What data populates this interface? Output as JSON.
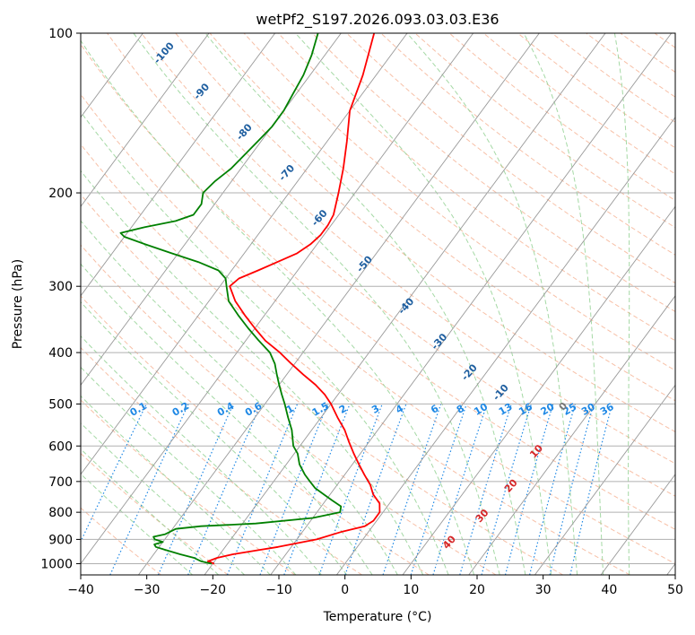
{
  "chart_data": {
    "type": "line",
    "title": "wetPf2_S197.2026.093.03.03.E36",
    "xlabel": "Temperature (°C)",
    "ylabel": "Pressure (hPa)",
    "xlim": [
      -40,
      50
    ],
    "ylim": [
      1050,
      100
    ],
    "y_scale": "log",
    "x_ticks": [
      -40,
      -30,
      -20,
      -10,
      0,
      10,
      20,
      30,
      40,
      50
    ],
    "y_ticks": [
      100,
      200,
      300,
      400,
      500,
      600,
      700,
      800,
      900,
      1000
    ],
    "skew": "skew-T",
    "grid": true,
    "colors": {
      "temperature": "#ff0000",
      "dewpoint": "#008000",
      "isotherm": "#999999",
      "dry_adiabat": "#f4a582",
      "moist_adiabat": "#8fcf8f",
      "mixing_ratio": "#1e88e5",
      "axis": "#000000"
    },
    "series": [
      {
        "name": "Temperature",
        "color": "#ff0000",
        "points": [
          [
            -19.8,
            1000
          ],
          [
            -21,
            990
          ],
          [
            -20,
            975
          ],
          [
            -18,
            960
          ],
          [
            -15,
            945
          ],
          [
            -12,
            930
          ],
          [
            -7,
            900
          ],
          [
            -4,
            870
          ],
          [
            -1.2,
            850
          ],
          [
            -0.5,
            830
          ],
          [
            -0.5,
            800
          ],
          [
            -1.5,
            770
          ],
          [
            -3.5,
            740
          ],
          [
            -5,
            710
          ],
          [
            -7,
            680
          ],
          [
            -9,
            650
          ],
          [
            -11,
            620
          ],
          [
            -13,
            590
          ],
          [
            -15,
            560
          ],
          [
            -17.5,
            530
          ],
          [
            -20,
            500
          ],
          [
            -22,
            480
          ],
          [
            -24.5,
            460
          ],
          [
            -27.5,
            440
          ],
          [
            -30.5,
            420
          ],
          [
            -33.5,
            400
          ],
          [
            -37,
            380
          ],
          [
            -40,
            360
          ],
          [
            -43,
            340
          ],
          [
            -46,
            320
          ],
          [
            -48.5,
            300
          ],
          [
            -48,
            290
          ],
          [
            -46,
            280
          ],
          [
            -44,
            270
          ],
          [
            -42,
            260
          ],
          [
            -41,
            250
          ],
          [
            -40.5,
            240
          ],
          [
            -40.5,
            230
          ],
          [
            -40.8,
            220
          ],
          [
            -42.5,
            200
          ],
          [
            -44.5,
            180
          ],
          [
            -47,
            160
          ],
          [
            -50,
            140
          ],
          [
            -52,
            120
          ],
          [
            -55,
            100
          ]
        ]
      },
      {
        "name": "Dewpoint",
        "color": "#008000",
        "points": [
          [
            -20.2,
            1000
          ],
          [
            -22,
            990
          ],
          [
            -23.5,
            975
          ],
          [
            -26,
            960
          ],
          [
            -29,
            940
          ],
          [
            -30.5,
            930
          ],
          [
            -31,
            920
          ],
          [
            -30,
            910
          ],
          [
            -31.5,
            900
          ],
          [
            -32,
            890
          ],
          [
            -30.5,
            880
          ],
          [
            -29.5,
            860
          ],
          [
            -26,
            850
          ],
          [
            -18,
            840
          ],
          [
            -10,
            820
          ],
          [
            -6.5,
            800
          ],
          [
            -7,
            780
          ],
          [
            -9,
            760
          ],
          [
            -11,
            740
          ],
          [
            -13,
            720
          ],
          [
            -14.5,
            700
          ],
          [
            -16,
            680
          ],
          [
            -18,
            650
          ],
          [
            -19.5,
            620
          ],
          [
            -21,
            600
          ],
          [
            -23,
            560
          ],
          [
            -25,
            530
          ],
          [
            -27,
            500
          ],
          [
            -28.5,
            480
          ],
          [
            -30,
            460
          ],
          [
            -31.5,
            440
          ],
          [
            -33,
            420
          ],
          [
            -35,
            400
          ],
          [
            -38,
            380
          ],
          [
            -41,
            360
          ],
          [
            -44,
            340
          ],
          [
            -47,
            320
          ],
          [
            -49,
            300
          ],
          [
            -50,
            290
          ],
          [
            -52,
            280
          ],
          [
            -56,
            270
          ],
          [
            -61,
            260
          ],
          [
            -66,
            250
          ],
          [
            -70,
            242
          ],
          [
            -71,
            238
          ],
          [
            -68,
            232
          ],
          [
            -64,
            226
          ],
          [
            -62,
            220
          ],
          [
            -62,
            210
          ],
          [
            -63,
            200
          ],
          [
            -62.5,
            190
          ],
          [
            -61.5,
            180
          ],
          [
            -61,
            170
          ],
          [
            -60.5,
            160
          ],
          [
            -60,
            150
          ],
          [
            -60,
            140
          ],
          [
            -60.5,
            130
          ],
          [
            -61,
            120
          ],
          [
            -62,
            110
          ],
          [
            -63.5,
            100
          ]
        ]
      }
    ],
    "mixing_ratio_labels": [
      "0.1",
      "0.2",
      "0.4",
      "0.6",
      "1",
      "1.5",
      "2",
      "3",
      "4",
      "6",
      "8",
      "10",
      "13",
      "16",
      "20",
      "25",
      "30",
      "36"
    ],
    "moist_adiabat_labels": [
      "-100",
      "-90",
      "-80",
      "-70",
      "-60",
      "-50",
      "-40",
      "-30",
      "-20",
      "-10"
    ],
    "dry_adiabat_labels": [
      "0",
      "10",
      "20",
      "30",
      "40"
    ]
  }
}
